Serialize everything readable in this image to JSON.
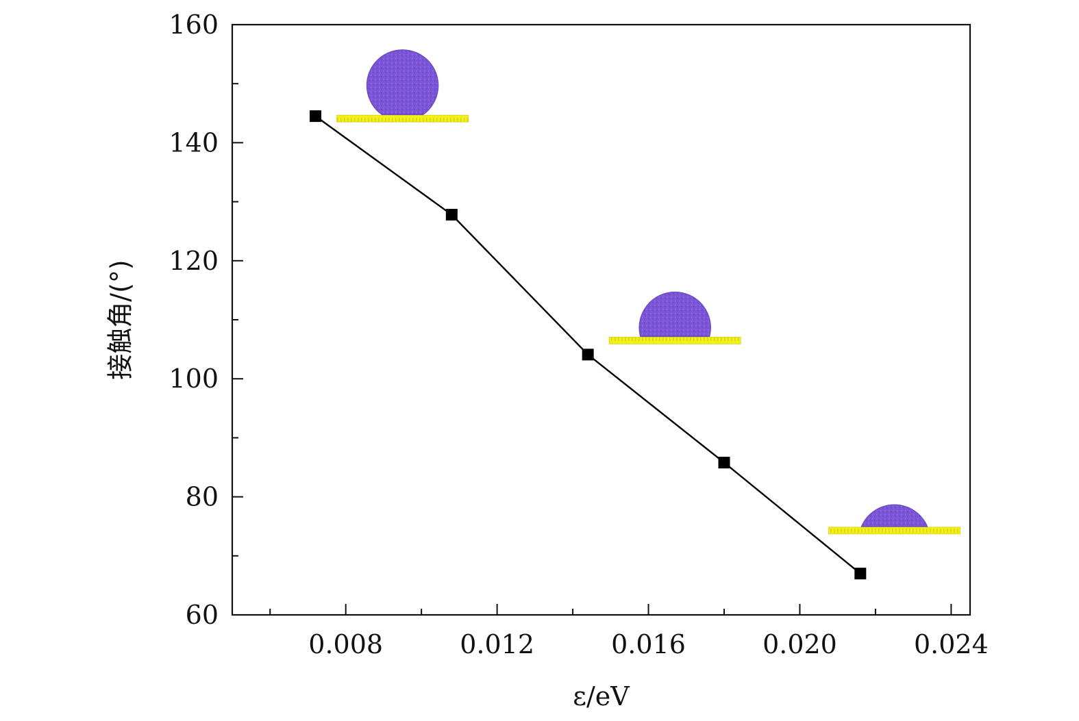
{
  "chart_data": {
    "type": "line",
    "title": "",
    "xlabel": "ε/eV",
    "ylabel": "接触角/(°)",
    "xlim": [
      0.005,
      0.0245
    ],
    "ylim": [
      60,
      160
    ],
    "x_ticks": [
      0.008,
      0.012,
      0.016,
      0.02,
      0.024
    ],
    "x_tick_labels": [
      "0.008",
      "0.012",
      "0.016",
      "0.020",
      "0.024"
    ],
    "x_minor_ticks": [
      0.006,
      0.01,
      0.014,
      0.018,
      0.022
    ],
    "y_ticks": [
      60,
      80,
      100,
      120,
      140,
      160
    ],
    "y_tick_labels": [
      "60",
      "80",
      "100",
      "120",
      "140",
      "160"
    ],
    "y_minor_ticks": [
      70,
      90,
      110,
      130,
      150
    ],
    "grid": false,
    "series": [
      {
        "marker": "square",
        "color": "#000000",
        "x": [
          0.0072,
          0.0108,
          0.0144,
          0.018,
          0.0216
        ],
        "y": [
          144.5,
          127.8,
          104.1,
          85.8,
          67.0
        ]
      }
    ],
    "droplet_insets": [
      {
        "name": "droplet-high-angle",
        "x_center": 0.0095,
        "substrate_y": 144.2,
        "contact_angle": 144.5
      },
      {
        "name": "droplet-mid-angle",
        "x_center": 0.0167,
        "substrate_y": 106.6,
        "contact_angle": 104.1
      },
      {
        "name": "droplet-low-angle",
        "x_center": 0.0225,
        "substrate_y": 74.4,
        "contact_angle": 67.0
      }
    ],
    "colors": {
      "line": "#000000",
      "marker": "#000000",
      "droplet": "#7a55d8",
      "droplet_edge": "#6a4cc8",
      "substrate": "#f2ef1a",
      "substrate_edge": "#d6d414"
    }
  }
}
